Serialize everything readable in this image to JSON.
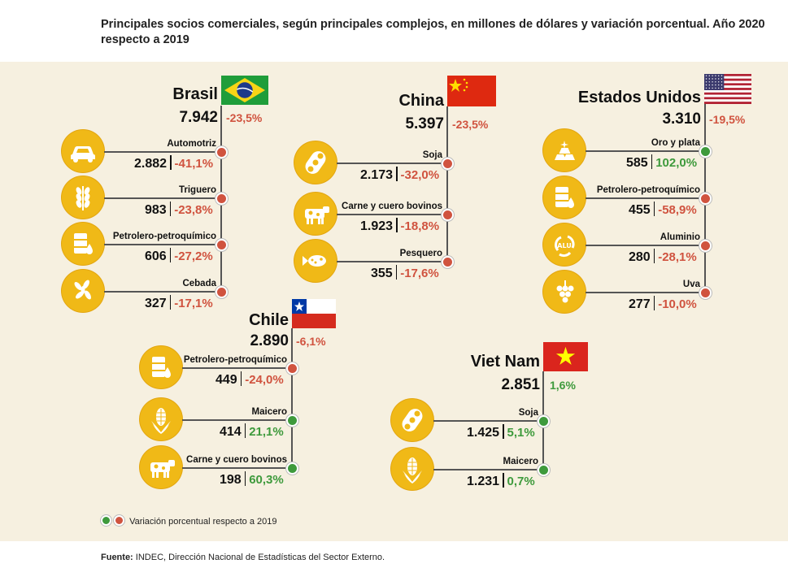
{
  "title": "Principales socios comerciales, según principales complejos, en millones de dólares y variación porcentual. Año 2020 respecto a 2019",
  "legend_text": "Variación porcentual respecto a 2019",
  "source_label": "Fuente:",
  "source_text": "INDEC, Dirección Nacional de Estadísticas del Sector Externo.",
  "colors": {
    "negative": "#d0533f",
    "positive": "#3e9a3c",
    "icon_bg": "#f0b917",
    "panel": "#f6f0e0"
  },
  "chart_data": {
    "type": "table",
    "countries": [
      {
        "key": "brasil",
        "name": "Brasil",
        "value": "7.942",
        "pct": "-23,5%",
        "trend": "neg",
        "items": [
          {
            "label": "Automotriz",
            "value": "2.882",
            "pct": "-41,1%",
            "trend": "neg",
            "icon": "car-icon"
          },
          {
            "label": "Triguero",
            "value": "983",
            "pct": "-23,8%",
            "trend": "neg",
            "icon": "wheat-icon"
          },
          {
            "label": "Petrolero-petroquímico",
            "value": "606",
            "pct": "-27,2%",
            "trend": "neg",
            "icon": "oil-barrel-icon"
          },
          {
            "label": "Cebada",
            "value": "327",
            "pct": "-17,1%",
            "trend": "neg",
            "icon": "barley-icon"
          }
        ]
      },
      {
        "key": "china",
        "name": "China",
        "value": "5.397",
        "pct": "-23,5%",
        "trend": "neg",
        "items": [
          {
            "label": "Soja",
            "value": "2.173",
            "pct": "-32,0%",
            "trend": "neg",
            "icon": "soy-icon"
          },
          {
            "label": "Carne y cuero bovinos",
            "value": "1.923",
            "pct": "-18,8%",
            "trend": "neg",
            "icon": "cow-icon"
          },
          {
            "label": "Pesquero",
            "value": "355",
            "pct": "-17,6%",
            "trend": "neg",
            "icon": "fish-icon"
          }
        ]
      },
      {
        "key": "usa",
        "name": "Estados Unidos",
        "value": "3.310",
        "pct": "-19,5%",
        "trend": "neg",
        "items": [
          {
            "label": "Oro y plata",
            "value": "585",
            "pct": "102,0%",
            "trend": "pos",
            "icon": "gold-bars-icon"
          },
          {
            "label": "Petrolero-petroquímico",
            "value": "455",
            "pct": "-58,9%",
            "trend": "neg",
            "icon": "oil-barrel-icon"
          },
          {
            "label": "Aluminio",
            "value": "280",
            "pct": "-28,1%",
            "trend": "neg",
            "icon": "aluminium-icon"
          },
          {
            "label": "Uva",
            "value": "277",
            "pct": "-10,0%",
            "trend": "neg",
            "icon": "grape-icon"
          }
        ]
      },
      {
        "key": "chile",
        "name": "Chile",
        "value": "2.890",
        "pct": "-6,1%",
        "trend": "neg",
        "items": [
          {
            "label": "Petrolero-petroquímico",
            "value": "449",
            "pct": "-24,0%",
            "trend": "neg",
            "icon": "oil-barrel-icon"
          },
          {
            "label": "Maicero",
            "value": "414",
            "pct": "21,1%",
            "trend": "pos",
            "icon": "corn-icon"
          },
          {
            "label": "Carne y cuero bovinos",
            "value": "198",
            "pct": "60,3%",
            "trend": "pos",
            "icon": "cow-icon"
          }
        ]
      },
      {
        "key": "vietnam",
        "name": "Viet Nam",
        "value": "2.851",
        "pct": "1,6%",
        "trend": "pos",
        "items": [
          {
            "label": "Soja",
            "value": "1.425",
            "pct": "5,1%",
            "trend": "pos",
            "icon": "soy-icon"
          },
          {
            "label": "Maicero",
            "value": "1.231",
            "pct": "0,7%",
            "trend": "pos",
            "icon": "corn-icon"
          }
        ]
      }
    ]
  }
}
